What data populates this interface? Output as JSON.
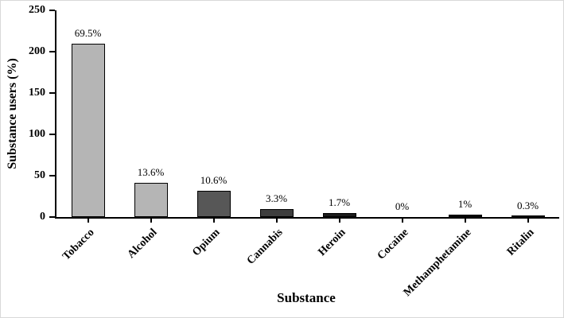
{
  "chart_data": {
    "type": "bar",
    "title": "",
    "xlabel": "Substance",
    "ylabel": "Substance users (%)",
    "categories": [
      "Tobacco",
      "Alcohol",
      "Opium",
      "Cannabis",
      "Heroin",
      "Cocaine",
      "Methamphetamine",
      "Ritalin"
    ],
    "values": [
      210,
      41,
      32,
      10,
      5,
      0,
      3,
      1
    ],
    "bar_labels": [
      "69.5%",
      "13.6%",
      "10.6%",
      "3.3%",
      "1.7%",
      "0%",
      "1%",
      "0.3%"
    ],
    "bar_colors": [
      "#b5b5b5",
      "#b5b5b5",
      "#575757",
      "#3e3e3e",
      "#1c1c1c",
      "#1c1c1c",
      "#0d0d0d",
      "#0d0d0d"
    ],
    "ylim": [
      0,
      250
    ],
    "yticks": [
      0,
      50,
      100,
      150,
      200,
      250
    ],
    "grid": false,
    "legend": false,
    "axis_color": "#000000"
  }
}
